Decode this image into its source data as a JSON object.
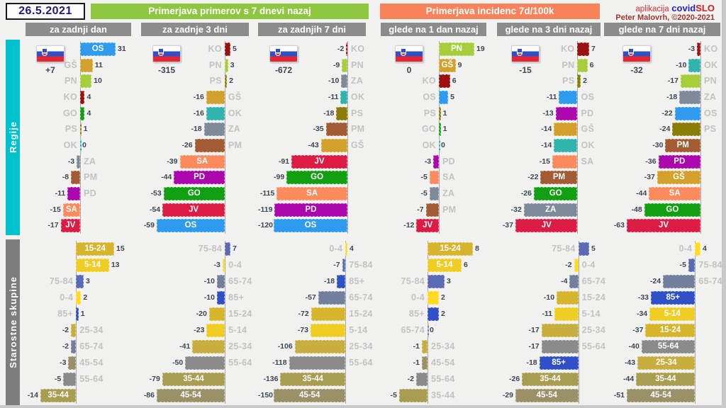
{
  "header": {
    "date": "26.5.2021",
    "left_title": "Primerjava primerov s 7 dnevi nazaj",
    "right_title": "Primerjava incidenc 7d/100k",
    "app": {
      "prefix": "aplikacija",
      "blue": "covid",
      "red": "SLO"
    },
    "credit": "Peter Malovrh, ©2020-2021"
  },
  "columns": [
    "za zadnji dan",
    "za zadnje 3 dni",
    "za zadnjih 7 dni",
    "glede na 1 dan nazaj",
    "glede na 3 dni nazaj",
    "glede na 7 dni nazaj"
  ],
  "row_groups": [
    {
      "label": "Regije",
      "color": "#00c2cf"
    },
    {
      "label": "Starostne skupine",
      "color": "#7d7d7d"
    }
  ],
  "colors": {
    "accents": {
      "green": "#8dc63f",
      "orange": "#f8825a",
      "gray_header": "#8c8c8c"
    },
    "regions": {
      "OS": "#2f9bef",
      "GŠ": "#d2a02b",
      "PN": "#a6ce3b",
      "KO": "#9e1010",
      "GO": "#12a012",
      "PS": "#8a7d07",
      "OK": "#2fb5ae",
      "ZA": "#7e8a99",
      "PM": "#a25b33",
      "PD": "#ac07ac",
      "SA": "#fb8a5c",
      "JV": "#dc1c45"
    },
    "ages": {
      "0-4": "#ffdb1f",
      "5-14": "#efcd22",
      "15-24": "#d6b42c",
      "25-34": "#c8ae3e",
      "35-44": "#a99d52",
      "45-54": "#9a9169",
      "55-64": "#8a8a8a",
      "65-74": "#72809e",
      "75-84": "#5a6ab4",
      "85+": "#3050c8"
    }
  },
  "chart_data": [
    {
      "type": "bar",
      "group": "Regije",
      "column": "za zadnji dan",
      "total": "+7",
      "bars": [
        {
          "label": "OS",
          "value": 31,
          "inside": true
        },
        {
          "label": "GŠ",
          "value": 11
        },
        {
          "label": "PN",
          "value": 10
        },
        {
          "label": "KO",
          "value": 4
        },
        {
          "label": "GO",
          "value": 4
        },
        {
          "label": "PS",
          "value": 1
        },
        {
          "label": "OK",
          "value": 0
        },
        {
          "label": "ZA",
          "value": -3
        },
        {
          "label": "PM",
          "value": -8
        },
        {
          "label": "PD",
          "value": -11
        },
        {
          "label": "SA",
          "value": -15,
          "inside": true
        },
        {
          "label": "JV",
          "value": -17,
          "inside": true
        }
      ]
    },
    {
      "type": "bar",
      "group": "Regije",
      "column": "za zadnje 3 dni",
      "total": "-315",
      "bars": [
        {
          "label": "KO",
          "value": 5
        },
        {
          "label": "PN",
          "value": 3
        },
        {
          "label": "PS",
          "value": 2
        },
        {
          "label": "GŠ",
          "value": -16
        },
        {
          "label": "OK",
          "value": -16
        },
        {
          "label": "ZA",
          "value": -18
        },
        {
          "label": "PM",
          "value": -26
        },
        {
          "label": "SA",
          "value": -39,
          "inside": true
        },
        {
          "label": "PD",
          "value": -44,
          "inside": true
        },
        {
          "label": "GO",
          "value": -53,
          "inside": true
        },
        {
          "label": "JV",
          "value": -54,
          "inside": true
        },
        {
          "label": "OS",
          "value": -59,
          "inside": true
        }
      ]
    },
    {
      "type": "bar",
      "group": "Regije",
      "column": "za zadnjih 7 dni",
      "total": "-672",
      "bars": [
        {
          "label": "KO",
          "value": -2
        },
        {
          "label": "PN",
          "value": -9
        },
        {
          "label": "ZA",
          "value": -10
        },
        {
          "label": "OK",
          "value": -11
        },
        {
          "label": "PS",
          "value": -18
        },
        {
          "label": "PM",
          "value": -35
        },
        {
          "label": "GŠ",
          "value": -43
        },
        {
          "label": "JV",
          "value": -91,
          "inside": true
        },
        {
          "label": "GO",
          "value": -99,
          "inside": true
        },
        {
          "label": "SA",
          "value": -115,
          "inside": true
        },
        {
          "label": "PD",
          "value": -119,
          "inside": true
        },
        {
          "label": "OS",
          "value": -120,
          "inside": true
        }
      ]
    },
    {
      "type": "bar",
      "group": "Regije",
      "column": "glede na 1 dan nazaj",
      "total": "0",
      "bars": [
        {
          "label": "PN",
          "value": 19,
          "inside": true
        },
        {
          "label": "GŠ",
          "value": 9,
          "inside": true
        },
        {
          "label": "KO",
          "value": 6
        },
        {
          "label": "OS",
          "value": 5
        },
        {
          "label": "PS",
          "value": 1
        },
        {
          "label": "GO",
          "value": 1
        },
        {
          "label": "OK",
          "value": 0
        },
        {
          "label": "PD",
          "value": -3
        },
        {
          "label": "SA",
          "value": -5
        },
        {
          "label": "ZA",
          "value": -5
        },
        {
          "label": "PM",
          "value": -7
        },
        {
          "label": "JV",
          "value": -12,
          "inside": true
        }
      ]
    },
    {
      "type": "bar",
      "group": "Regije",
      "column": "glede na 3 dni nazaj",
      "total": "-15",
      "bars": [
        {
          "label": "KO",
          "value": 7
        },
        {
          "label": "PN",
          "value": 6
        },
        {
          "label": "PS",
          "value": 2
        },
        {
          "label": "OS",
          "value": -11
        },
        {
          "label": "PD",
          "value": -13
        },
        {
          "label": "GŠ",
          "value": -14
        },
        {
          "label": "OK",
          "value": -14
        },
        {
          "label": "SA",
          "value": -15
        },
        {
          "label": "PM",
          "value": -22,
          "inside": true
        },
        {
          "label": "GO",
          "value": -26,
          "inside": true
        },
        {
          "label": "ZA",
          "value": -32,
          "inside": true
        },
        {
          "label": "JV",
          "value": -37,
          "inside": true
        }
      ]
    },
    {
      "type": "bar",
      "group": "Regije",
      "column": "glede na 7 dni nazaj",
      "total": "-32",
      "bars": [
        {
          "label": "KO",
          "value": -3
        },
        {
          "label": "OK",
          "value": -10
        },
        {
          "label": "PN",
          "value": -17
        },
        {
          "label": "ZA",
          "value": -18
        },
        {
          "label": "OS",
          "value": -22
        },
        {
          "label": "PS",
          "value": -24
        },
        {
          "label": "PM",
          "value": -30,
          "inside": true
        },
        {
          "label": "PD",
          "value": -36,
          "inside": true
        },
        {
          "label": "GŠ",
          "value": -37,
          "inside": true
        },
        {
          "label": "SA",
          "value": -44,
          "inside": true
        },
        {
          "label": "GO",
          "value": -48,
          "inside": true
        },
        {
          "label": "JV",
          "value": -63,
          "inside": true
        }
      ]
    },
    {
      "type": "bar",
      "group": "Starostne skupine",
      "column": "za zadnji dan",
      "total": null,
      "bars": [
        {
          "label": "15-24",
          "value": 15,
          "inside": true
        },
        {
          "label": "5-14",
          "value": 13,
          "inside": true
        },
        {
          "label": "75-84",
          "value": 3
        },
        {
          "label": "0-4",
          "value": 2
        },
        {
          "label": "85+",
          "value": 1
        },
        {
          "label": "25-34",
          "value": -2
        },
        {
          "label": "65-74",
          "value": -2
        },
        {
          "label": "45-54",
          "value": -3
        },
        {
          "label": "55-64",
          "value": -5
        },
        {
          "label": "35-44",
          "value": -14,
          "inside": true
        }
      ]
    },
    {
      "type": "bar",
      "group": "Starostne skupine",
      "column": "za zadnje 3 dni",
      "total": null,
      "bars": [
        {
          "label": "75-84",
          "value": 7
        },
        {
          "label": "0-4",
          "value": -3
        },
        {
          "label": "65-74",
          "value": -10
        },
        {
          "label": "85+",
          "value": -10
        },
        {
          "label": "15-24",
          "value": -20
        },
        {
          "label": "5-14",
          "value": -23
        },
        {
          "label": "25-34",
          "value": -41
        },
        {
          "label": "55-64",
          "value": -50
        },
        {
          "label": "35-44",
          "value": -79,
          "inside": true
        },
        {
          "label": "45-54",
          "value": -86,
          "inside": true
        }
      ]
    },
    {
      "type": "bar",
      "group": "Starostne skupine",
      "column": "za zadnjih 7 dni",
      "total": null,
      "bars": [
        {
          "label": "0-4",
          "value": 4
        },
        {
          "label": "75-84",
          "value": -7
        },
        {
          "label": "85+",
          "value": -18
        },
        {
          "label": "65-74",
          "value": -57
        },
        {
          "label": "15-24",
          "value": -72
        },
        {
          "label": "5-14",
          "value": -73
        },
        {
          "label": "25-34",
          "value": -106
        },
        {
          "label": "55-64",
          "value": -118
        },
        {
          "label": "35-44",
          "value": -136,
          "inside": true
        },
        {
          "label": "45-54",
          "value": -150,
          "inside": true
        }
      ]
    },
    {
      "type": "bar",
      "group": "Starostne skupine",
      "column": "glede na 1 dan nazaj",
      "total": null,
      "bars": [
        {
          "label": "15-24",
          "value": 8,
          "inside": true
        },
        {
          "label": "5-14",
          "value": 6,
          "inside": true
        },
        {
          "label": "75-84",
          "value": 3
        },
        {
          "label": "0-4",
          "value": 2
        },
        {
          "label": "85+",
          "value": 2
        },
        {
          "label": "65-74",
          "value": 0
        },
        {
          "label": "25-34",
          "value": -1
        },
        {
          "label": "45-54",
          "value": -1
        },
        {
          "label": "55-64",
          "value": -2
        },
        {
          "label": "35-44",
          "value": -5
        }
      ]
    },
    {
      "type": "bar",
      "group": "Starostne skupine",
      "column": "glede na 3 dni nazaj",
      "total": null,
      "bars": [
        {
          "label": "75-84",
          "value": 5
        },
        {
          "label": "0-4",
          "value": -2
        },
        {
          "label": "65-74",
          "value": -4
        },
        {
          "label": "15-24",
          "value": -10
        },
        {
          "label": "5-14",
          "value": -11
        },
        {
          "label": "25-34",
          "value": -17
        },
        {
          "label": "55-64",
          "value": -17
        },
        {
          "label": "85+",
          "value": -18,
          "inside": true
        },
        {
          "label": "35-44",
          "value": -26,
          "inside": true
        },
        {
          "label": "45-54",
          "value": -29,
          "inside": true
        }
      ]
    },
    {
      "type": "bar",
      "group": "Starostne skupine",
      "column": "glede na 7 dni nazaj",
      "total": null,
      "bars": [
        {
          "label": "0-4",
          "value": 4
        },
        {
          "label": "75-84",
          "value": -5
        },
        {
          "label": "65-74",
          "value": -24
        },
        {
          "label": "85+",
          "value": -33,
          "inside": true
        },
        {
          "label": "5-14",
          "value": -34,
          "inside": true
        },
        {
          "label": "15-24",
          "value": -37,
          "inside": true
        },
        {
          "label": "55-64",
          "value": -40,
          "inside": true
        },
        {
          "label": "25-34",
          "value": -43,
          "inside": true
        },
        {
          "label": "35-44",
          "value": -44,
          "inside": true
        },
        {
          "label": "45-54",
          "value": -51,
          "inside": true
        }
      ]
    }
  ]
}
